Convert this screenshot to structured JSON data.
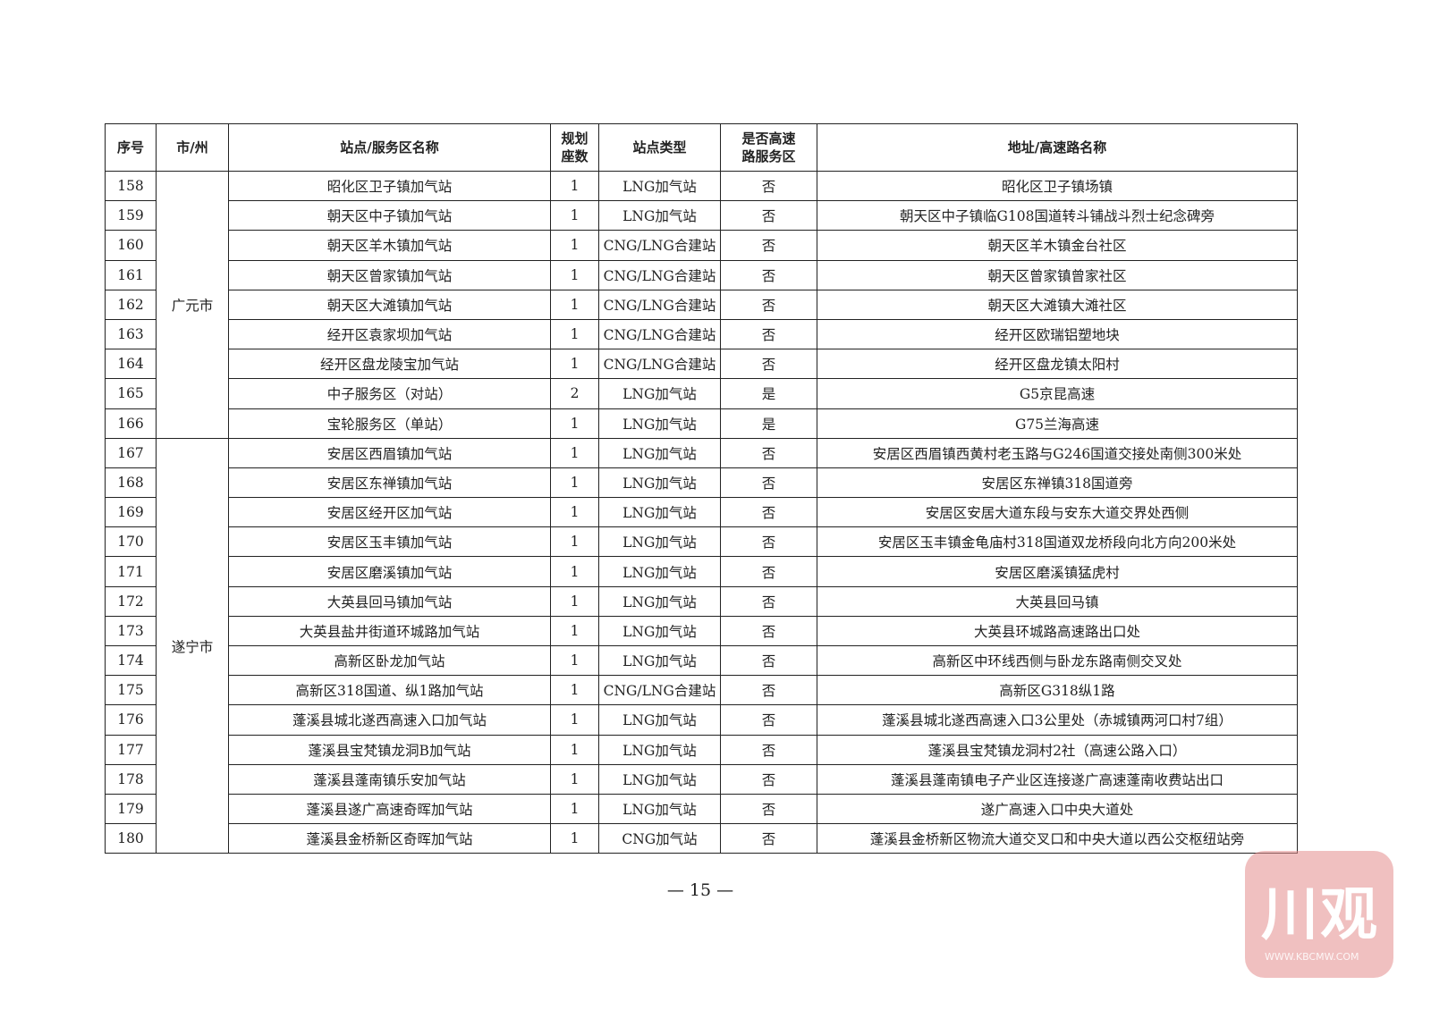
{
  "table": {
    "headers": [
      "序号",
      "市/州",
      "站点/服务区名称",
      "规划\n座数",
      "站点类型",
      "是否高速\n路服务区",
      "地址/高速路名称"
    ],
    "groups": [
      {
        "city": "广元市",
        "rows": [
          [
            "158",
            "昭化区卫子镇加气站",
            "1",
            "LNG加气站",
            "否",
            "昭化区卫子镇场镇"
          ],
          [
            "159",
            "朝天区中子镇加气站",
            "1",
            "LNG加气站",
            "否",
            "朝天区中子镇临G108国道转斗铺战斗烈士纪念碑旁"
          ],
          [
            "160",
            "朝天区羊木镇加气站",
            "1",
            "CNG/LNG合建站",
            "否",
            "朝天区羊木镇金台社区"
          ],
          [
            "161",
            "朝天区曾家镇加气站",
            "1",
            "CNG/LNG合建站",
            "否",
            "朝天区曾家镇曾家社区"
          ],
          [
            "162",
            "朝天区大滩镇加气站",
            "1",
            "CNG/LNG合建站",
            "否",
            "朝天区大滩镇大滩社区"
          ],
          [
            "163",
            "经开区袁家坝加气站",
            "1",
            "CNG/LNG合建站",
            "否",
            "经开区欧瑞铝塑地块"
          ],
          [
            "164",
            "经开区盘龙陵宝加气站",
            "1",
            "CNG/LNG合建站",
            "否",
            "经开区盘龙镇太阳村"
          ],
          [
            "165",
            "中子服务区（对站）",
            "2",
            "LNG加气站",
            "是",
            "G5京昆高速"
          ],
          [
            "166",
            "宝轮服务区（单站）",
            "1",
            "LNG加气站",
            "是",
            "G75兰海高速"
          ]
        ]
      },
      {
        "city": "遂宁市",
        "rows": [
          [
            "167",
            "安居区西眉镇加气站",
            "1",
            "LNG加气站",
            "否",
            "安居区西眉镇西黄村老玉路与G246国道交接处南侧300米处"
          ],
          [
            "168",
            "安居区东禅镇加气站",
            "1",
            "LNG加气站",
            "否",
            "安居区东禅镇318国道旁"
          ],
          [
            "169",
            "安居区经开区加气站",
            "1",
            "LNG加气站",
            "否",
            "安居区安居大道东段与安东大道交界处西侧"
          ],
          [
            "170",
            "安居区玉丰镇加气站",
            "1",
            "LNG加气站",
            "否",
            "安居区玉丰镇金龟庙村318国道双龙桥段向北方向200米处"
          ],
          [
            "171",
            "安居区磨溪镇加气站",
            "1",
            "LNG加气站",
            "否",
            "安居区磨溪镇猛虎村"
          ],
          [
            "172",
            "大英县回马镇加气站",
            "1",
            "LNG加气站",
            "否",
            "大英县回马镇"
          ],
          [
            "173",
            "大英县盐井街道环城路加气站",
            "1",
            "LNG加气站",
            "否",
            "大英县环城路高速路出口处"
          ],
          [
            "174",
            "高新区卧龙加气站",
            "1",
            "LNG加气站",
            "否",
            "高新区中环线西侧与卧龙东路南侧交叉处"
          ],
          [
            "175",
            "高新区318国道、纵1路加气站",
            "1",
            "CNG/LNG合建站",
            "否",
            "高新区G318纵1路"
          ],
          [
            "176",
            "蓬溪县城北遂西高速入口加气站",
            "1",
            "LNG加气站",
            "否",
            "蓬溪县城北遂西高速入口3公里处（赤城镇两河口村7组）"
          ],
          [
            "177",
            "蓬溪县宝梵镇龙洞B加气站",
            "1",
            "LNG加气站",
            "否",
            "蓬溪县宝梵镇龙洞村2社（高速公路入口）"
          ],
          [
            "178",
            "蓬溪县蓬南镇乐安加气站",
            "1",
            "LNG加气站",
            "否",
            "蓬溪县蓬南镇电子产业区连接遂广高速蓬南收费站出口"
          ],
          [
            "179",
            "蓬溪县遂广高速奇晖加气站",
            "1",
            "LNG加气站",
            "否",
            "遂广高速入口中央大道处"
          ],
          [
            "180",
            "蓬溪县金桥新区奇晖加气站",
            "1",
            "CNG加气站",
            "否",
            "蓬溪县金桥新区物流大道交叉口和中央大道以西公交枢纽站旁"
          ]
        ]
      }
    ]
  },
  "page_number": "— 15 —",
  "watermark": {
    "text": "川观",
    "sub": "WWW.KBCMW.COM",
    "color": "#e48c8c"
  }
}
